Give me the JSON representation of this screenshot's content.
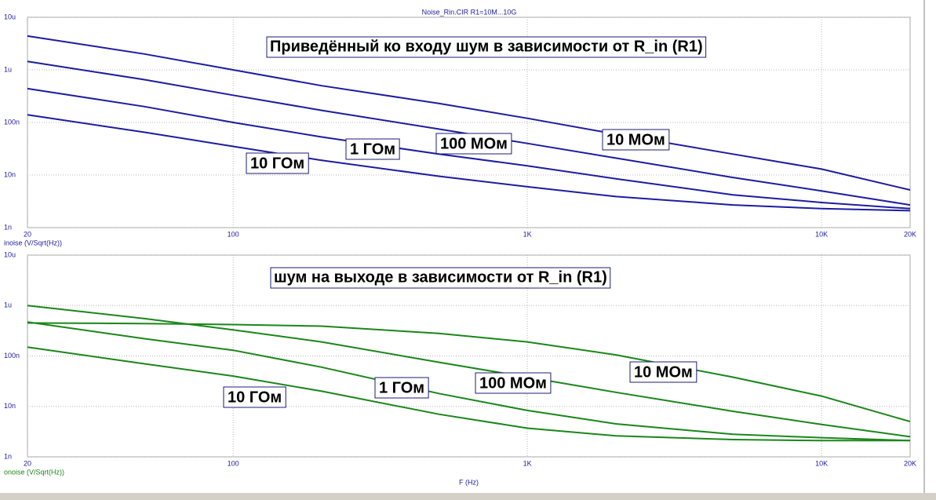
{
  "window_title": "Noise_Rin.CIR R1=10M...10G",
  "chart_data": [
    {
      "type": "line",
      "title": "Приведённый ко входу шум в зависимости от R_in (R1)",
      "y_label": "inoise (V/Sqrt(Hz))",
      "log_x": true,
      "log_y": true,
      "grid": true,
      "xlim": [
        20,
        20000
      ],
      "xticks": [
        20,
        100,
        {
          "value": 1000,
          "label": "1K"
        },
        {
          "value": 10000,
          "label": "10K"
        },
        {
          "value": 20000,
          "label": "20K"
        }
      ],
      "ylim": [
        1e-09,
        1e-05
      ],
      "yticks": [
        {
          "value": 1e-09,
          "label": "1n"
        },
        {
          "value": 1e-08,
          "label": "10n"
        },
        {
          "value": 1e-07,
          "label": "100n"
        },
        {
          "value": 1e-06,
          "label": "1u"
        },
        {
          "value": 1e-05,
          "label": "10u"
        }
      ],
      "x": [
        20,
        50,
        100,
        200,
        500,
        1000,
        2000,
        5000,
        10000,
        20000
      ],
      "series": [
        {
          "name": "10 МОм",
          "color": "#1c1ca0",
          "values": [
            4.4e-06,
            2e-06,
            1e-06,
            5e-07,
            2.3e-07,
            1.2e-07,
            6e-08,
            2.5e-08,
            1.3e-08,
            5.2e-09
          ]
        },
        {
          "name": "100 МОм",
          "color": "#1c1ca0",
          "values": [
            1.45e-06,
            6.5e-07,
            3.3e-07,
            1.7e-07,
            7.5e-08,
            4e-08,
            2.1e-08,
            9e-09,
            5e-09,
            2.7e-09
          ]
        },
        {
          "name": "1 ГОм",
          "color": "#1c1ca0",
          "values": [
            4.4e-07,
            2e-07,
            1e-07,
            5.3e-08,
            2.5e-08,
            1.5e-08,
            8.5e-09,
            4.2e-09,
            3e-09,
            2.3e-09
          ]
        },
        {
          "name": "10 ГОм",
          "color": "#1c1ca0",
          "values": [
            1.4e-07,
            6.5e-08,
            3.5e-08,
            1.9e-08,
            9.5e-09,
            6e-09,
            3.9e-09,
            2.7e-09,
            2.3e-09,
            2.1e-09
          ]
        }
      ]
    },
    {
      "type": "line",
      "title": "шум на выходе в зависимости от R_in (R1)",
      "y_label": "onoise (V/Sqrt(Hz))",
      "x_label": "F (Hz)",
      "log_x": true,
      "log_y": true,
      "grid": true,
      "xlim": [
        20,
        20000
      ],
      "xticks": [
        20,
        100,
        {
          "value": 1000,
          "label": "1K"
        },
        {
          "value": 10000,
          "label": "10K"
        },
        {
          "value": 20000,
          "label": "20K"
        }
      ],
      "ylim": [
        1e-09,
        1e-05
      ],
      "yticks": [
        {
          "value": 1e-09,
          "label": "1n"
        },
        {
          "value": 1e-08,
          "label": "10n"
        },
        {
          "value": 1e-07,
          "label": "100n"
        },
        {
          "value": 1e-06,
          "label": "1u"
        },
        {
          "value": 1e-05,
          "label": "10u"
        }
      ],
      "x": [
        20,
        50,
        100,
        200,
        500,
        1000,
        2000,
        5000,
        10000,
        20000
      ],
      "series": [
        {
          "name": "10 МОм",
          "color": "#1a861a",
          "values": [
            4.5e-07,
            4.4e-07,
            4.2e-07,
            3.9e-07,
            2.8e-07,
            1.9e-07,
            1.05e-07,
            3.8e-08,
            1.6e-08,
            5e-09
          ]
        },
        {
          "name": "100 МОм",
          "color": "#1a861a",
          "values": [
            1e-06,
            5.5e-07,
            3.3e-07,
            1.9e-07,
            7.5e-08,
            3.8e-08,
            1.9e-08,
            8e-09,
            4.4e-09,
            2.5e-09
          ]
        },
        {
          "name": "1 ГОм",
          "color": "#1a861a",
          "values": [
            4.7e-07,
            2.2e-07,
            1.3e-07,
            6e-08,
            1.8e-08,
            8.3e-09,
            4.5e-09,
            2.8e-09,
            2.4e-09,
            2.1e-09
          ]
        },
        {
          "name": "10 ГОм",
          "color": "#1a861a",
          "values": [
            1.5e-07,
            7e-08,
            4e-08,
            2e-08,
            7e-09,
            3.7e-09,
            2.6e-09,
            2.2e-09,
            2.1e-09,
            2.1e-09
          ]
        }
      ]
    }
  ]
}
